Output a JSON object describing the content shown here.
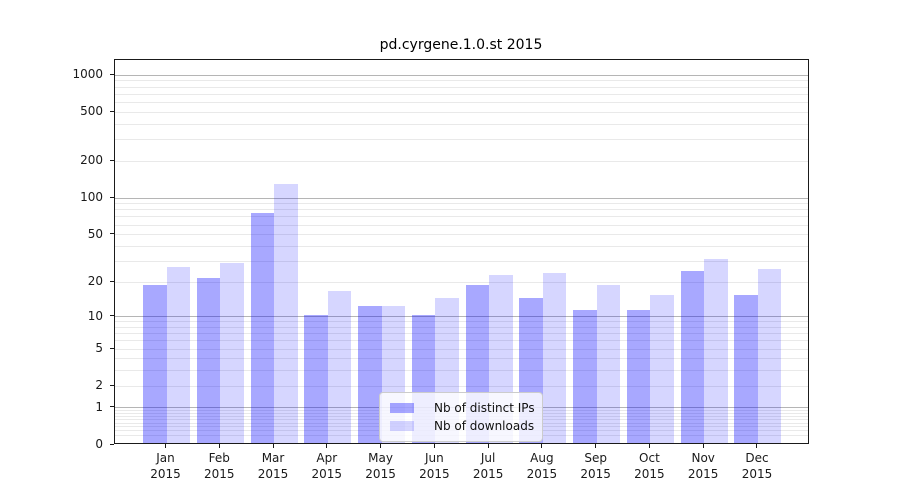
{
  "title": "pd.cyrgene.1.0.st 2015",
  "chart_data": {
    "type": "bar",
    "title": "pd.cyrgene.1.0.st 2015",
    "categories": [
      "Jan",
      "Feb",
      "Mar",
      "Apr",
      "May",
      "Jun",
      "Jul",
      "Aug",
      "Sep",
      "Oct",
      "Nov",
      "Dec"
    ],
    "x_year": "2015",
    "series": [
      {
        "name": "Nb of distinct IPs",
        "color": "rgba(0,0,255,0.34)",
        "values": [
          18,
          21,
          72,
          10,
          12,
          10,
          18,
          14,
          11,
          11,
          24,
          15
        ]
      },
      {
        "name": "Nb of downloads",
        "color": "rgba(0,0,255,0.16)",
        "values": [
          26,
          28,
          125,
          16,
          12,
          14,
          22,
          23,
          18,
          15,
          30,
          25
        ]
      }
    ],
    "y_ticks": [
      0,
      1,
      2,
      5,
      10,
      20,
      50,
      100,
      200,
      500,
      1000
    ],
    "y_scale": "log1p",
    "ylim": [
      0,
      1200
    ],
    "grid": true,
    "legend_position": "lower center",
    "xlabel": "",
    "ylabel": ""
  },
  "colors": {
    "bar_ips": "rgba(0,0,255,0.34)",
    "bar_downloads": "rgba(0,0,255,0.16)",
    "grid_major": "#b5b5b5",
    "grid_minor": "#e9e9e9",
    "spine": "#1a1a1a",
    "background": "#ffffff"
  }
}
